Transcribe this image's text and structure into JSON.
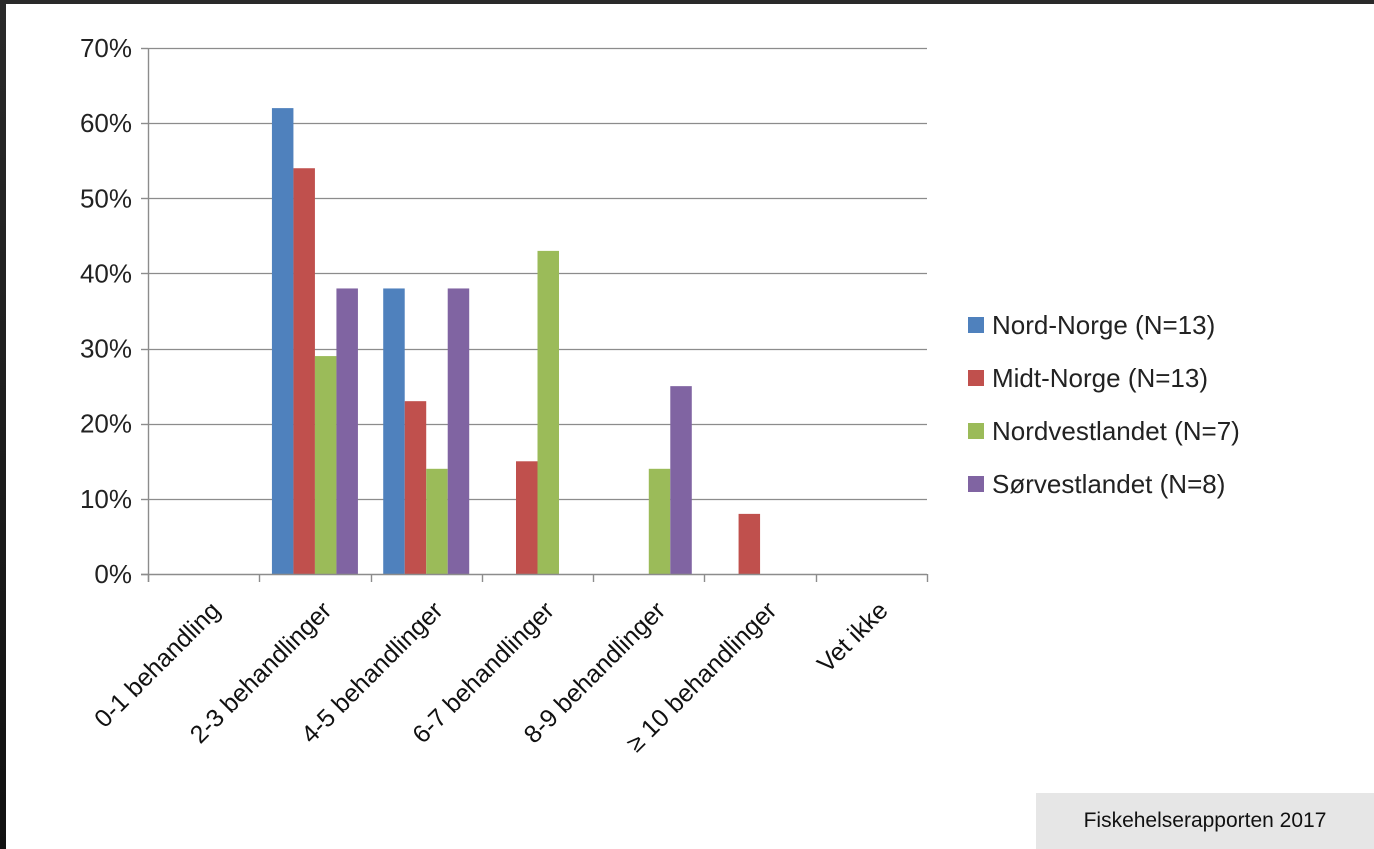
{
  "source_note": "Fiskehelserapporten 2017",
  "chart_data": {
    "type": "bar",
    "title": "",
    "xlabel": "",
    "ylabel": "",
    "ylim": [
      0,
      70
    ],
    "y_ticks": [
      "0%",
      "10%",
      "20%",
      "30%",
      "40%",
      "50%",
      "60%",
      "70%"
    ],
    "y_tick_values": [
      0,
      10,
      20,
      30,
      40,
      50,
      60,
      70
    ],
    "grid": true,
    "legend_position": "right",
    "categories": [
      "0-1 behandling",
      "2-3 behandlinger",
      "4-5 behandlinger",
      "6-7 behandlinger",
      "8-9 behandlinger",
      "≥ 10 behandlinger",
      "Vet ikke"
    ],
    "series": [
      {
        "name": "Nord-Norge (N=13)",
        "color": "#4f81bd",
        "values": [
          0,
          62,
          38,
          0,
          0,
          0,
          0
        ]
      },
      {
        "name": "Midt-Norge (N=13)",
        "color": "#c0504d",
        "values": [
          0,
          54,
          23,
          15,
          0,
          8,
          0
        ]
      },
      {
        "name": "Nordvestlandet (N=7)",
        "color": "#9bbb59",
        "values": [
          0,
          29,
          14,
          43,
          14,
          0,
          0
        ]
      },
      {
        "name": "Sørvestlandet (N=8)",
        "color": "#8064a2",
        "values": [
          0,
          38,
          38,
          0,
          25,
          0,
          0
        ]
      }
    ]
  }
}
